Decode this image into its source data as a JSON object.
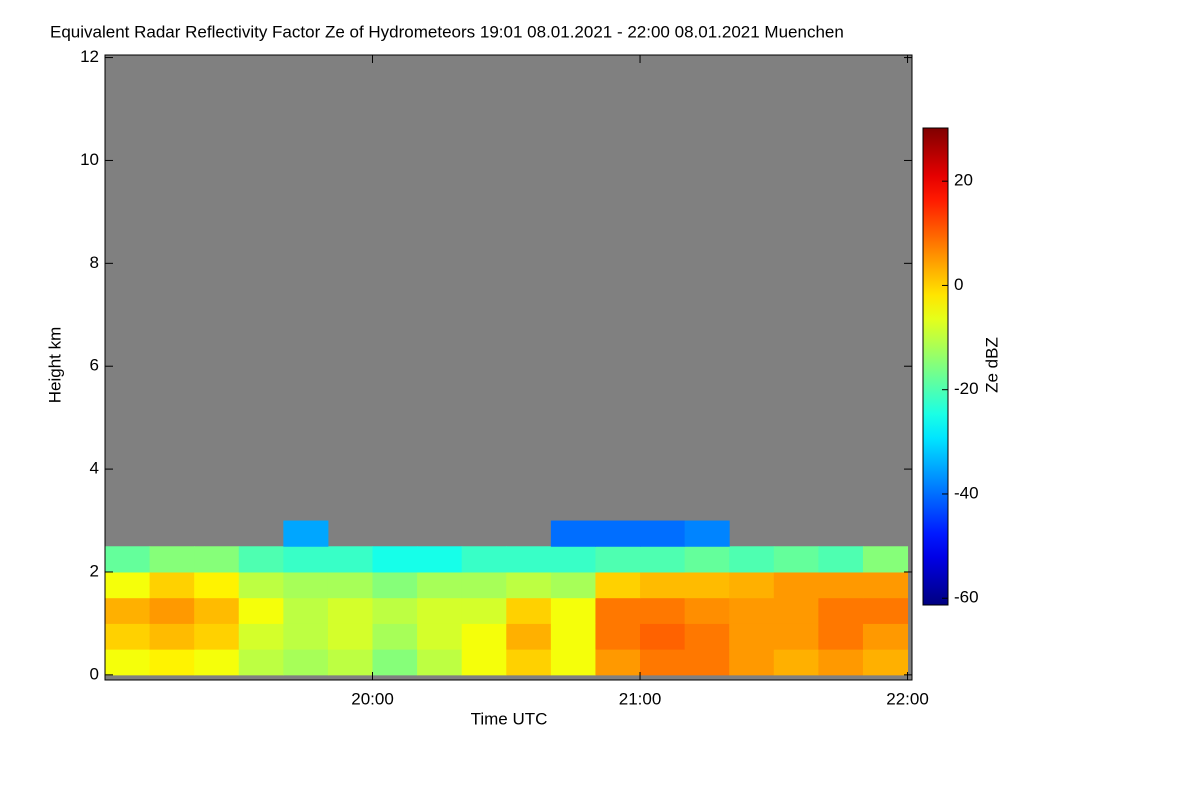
{
  "chart_data": {
    "type": "heatmap",
    "title": "Equivalent Radar Reflectivity Factor Ze of Hydrometeors   19:01 08.01.2021 - 22:00 08.01.2021 Muenchen",
    "x_label": "Time UTC",
    "y_label": "Height km",
    "colorbar_label": "Ze dBZ",
    "colormap": "jet",
    "no_data_color": "#808080",
    "xlim": [
      0,
      181
    ],
    "xticks": [
      {
        "value": 60,
        "label": "20:00"
      },
      {
        "value": 120,
        "label": "21:00"
      },
      {
        "value": 180,
        "label": "22:00"
      }
    ],
    "ylim": [
      -0.1,
      12.05
    ],
    "yticks": [
      0,
      2,
      4,
      6,
      8,
      10,
      12
    ],
    "clim": [
      -61.3,
      30.2
    ],
    "cticks": [
      -60,
      -40,
      -20,
      0,
      20
    ],
    "x": [
      5,
      15,
      25,
      35,
      45,
      55,
      65,
      75,
      85,
      95,
      105,
      115,
      125,
      135,
      145,
      155,
      165,
      175
    ],
    "y": [
      0.25,
      0.75,
      1.25,
      1.75,
      2.25,
      2.75
    ],
    "z": [
      [
        -5,
        -3,
        -5,
        -10,
        -12,
        -10,
        -15,
        -10,
        -5,
        0,
        -5,
        5,
        8,
        8,
        5,
        3,
        5,
        3
      ],
      [
        0,
        2,
        0,
        -8,
        -10,
        -8,
        -12,
        -8,
        -5,
        3,
        -5,
        8,
        10,
        8,
        5,
        5,
        8,
        5
      ],
      [
        3,
        5,
        2,
        -5,
        -10,
        -8,
        -10,
        -8,
        -8,
        0,
        -5,
        8,
        8,
        6,
        5,
        5,
        8,
        8
      ],
      [
        -5,
        0,
        -3,
        -10,
        -12,
        -12,
        -15,
        -12,
        -12,
        -10,
        -12,
        0,
        2,
        2,
        3,
        5,
        5,
        5
      ],
      [
        -18,
        -15,
        -15,
        -20,
        -22,
        -22,
        -25,
        -25,
        -22,
        -22,
        -22,
        -20,
        -20,
        -18,
        -20,
        -18,
        -20,
        -15
      ],
      [
        null,
        null,
        null,
        null,
        -35,
        null,
        null,
        null,
        null,
        null,
        -40,
        -40,
        -40,
        -38,
        null,
        null,
        null,
        null
      ]
    ]
  }
}
